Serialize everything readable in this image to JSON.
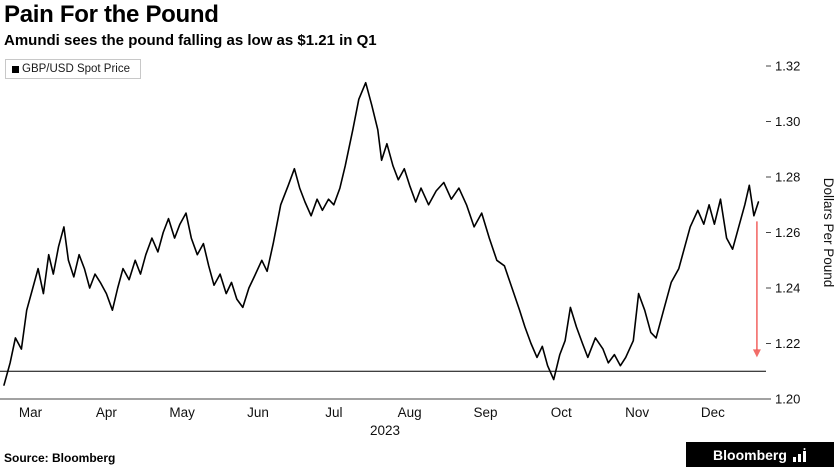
{
  "footer": {
    "source": "Source: Bloomberg",
    "logo_text": "Bloomberg"
  },
  "chart_data": {
    "type": "line",
    "title": "Pain For the Pound",
    "subtitle": "Amundi sees the pound falling as low as $1.21 in Q1",
    "ylabel": "Dollars Per Pound",
    "year_label": "2023",
    "ylim": [
      1.2,
      1.32
    ],
    "xlim": [
      -0.35,
      9.7
    ],
    "yticks": [
      1.2,
      1.22,
      1.24,
      1.26,
      1.28,
      1.3,
      1.32
    ],
    "xticks": [
      "Mar",
      "Apr",
      "May",
      "Jun",
      "Jul",
      "Aug",
      "Sep",
      "Oct",
      "Nov",
      "Dec"
    ],
    "grid": false,
    "legend_position": "top-left",
    "axis_color": "#444444",
    "tick_label_color": "#111111",
    "reference_line": {
      "value": 1.21,
      "color": "#000000"
    },
    "annotation_arrow": {
      "x": 9.58,
      "from": 1.264,
      "to": 1.215,
      "color": "#f0534f",
      "meaning": "pound seen falling toward 1.21"
    },
    "series": [
      {
        "name": "GBP/USD Spot Price",
        "color": "#000000",
        "x": [
          -0.35,
          -0.27,
          -0.2,
          -0.12,
          -0.05,
          0.03,
          0.1,
          0.17,
          0.24,
          0.3,
          0.37,
          0.44,
          0.5,
          0.57,
          0.64,
          0.71,
          0.78,
          0.85,
          0.92,
          1.0,
          1.08,
          1.15,
          1.22,
          1.3,
          1.38,
          1.45,
          1.52,
          1.6,
          1.68,
          1.75,
          1.82,
          1.9,
          1.97,
          2.05,
          2.12,
          2.2,
          2.28,
          2.35,
          2.42,
          2.5,
          2.58,
          2.65,
          2.72,
          2.8,
          2.88,
          2.95,
          3.05,
          3.12,
          3.2,
          3.3,
          3.4,
          3.48,
          3.55,
          3.62,
          3.7,
          3.78,
          3.85,
          3.93,
          4.0,
          4.08,
          4.15,
          4.25,
          4.33,
          4.42,
          4.5,
          4.58,
          4.63,
          4.7,
          4.78,
          4.85,
          4.93,
          5.0,
          5.08,
          5.15,
          5.25,
          5.35,
          5.45,
          5.55,
          5.65,
          5.75,
          5.85,
          5.95,
          6.05,
          6.15,
          6.25,
          6.35,
          6.45,
          6.52,
          6.6,
          6.68,
          6.75,
          6.82,
          6.9,
          6.98,
          7.05,
          7.12,
          7.2,
          7.28,
          7.35,
          7.45,
          7.55,
          7.62,
          7.7,
          7.78,
          7.85,
          7.95,
          8.02,
          8.1,
          8.18,
          8.25,
          8.35,
          8.45,
          8.55,
          8.62,
          8.7,
          8.8,
          8.88,
          8.95,
          9.02,
          9.1,
          9.18,
          9.26,
          9.34,
          9.42,
          9.48,
          9.54,
          9.6
        ],
        "values": [
          1.205,
          1.213,
          1.222,
          1.218,
          1.232,
          1.24,
          1.247,
          1.238,
          1.252,
          1.245,
          1.255,
          1.262,
          1.25,
          1.244,
          1.252,
          1.247,
          1.24,
          1.245,
          1.242,
          1.238,
          1.232,
          1.24,
          1.247,
          1.243,
          1.25,
          1.245,
          1.252,
          1.258,
          1.253,
          1.26,
          1.265,
          1.258,
          1.263,
          1.267,
          1.258,
          1.252,
          1.256,
          1.248,
          1.241,
          1.245,
          1.238,
          1.242,
          1.236,
          1.233,
          1.24,
          1.244,
          1.25,
          1.246,
          1.256,
          1.27,
          1.277,
          1.283,
          1.276,
          1.271,
          1.266,
          1.272,
          1.268,
          1.272,
          1.27,
          1.276,
          1.284,
          1.297,
          1.308,
          1.314,
          1.306,
          1.297,
          1.286,
          1.292,
          1.284,
          1.279,
          1.283,
          1.277,
          1.271,
          1.276,
          1.27,
          1.275,
          1.278,
          1.272,
          1.276,
          1.27,
          1.262,
          1.267,
          1.258,
          1.25,
          1.248,
          1.24,
          1.232,
          1.226,
          1.22,
          1.215,
          1.219,
          1.212,
          1.207,
          1.216,
          1.221,
          1.233,
          1.226,
          1.22,
          1.215,
          1.222,
          1.218,
          1.213,
          1.216,
          1.212,
          1.215,
          1.221,
          1.238,
          1.232,
          1.224,
          1.222,
          1.232,
          1.242,
          1.247,
          1.254,
          1.262,
          1.268,
          1.263,
          1.27,
          1.263,
          1.272,
          1.258,
          1.254,
          1.262,
          1.27,
          1.277,
          1.266,
          1.271
        ]
      }
    ]
  }
}
